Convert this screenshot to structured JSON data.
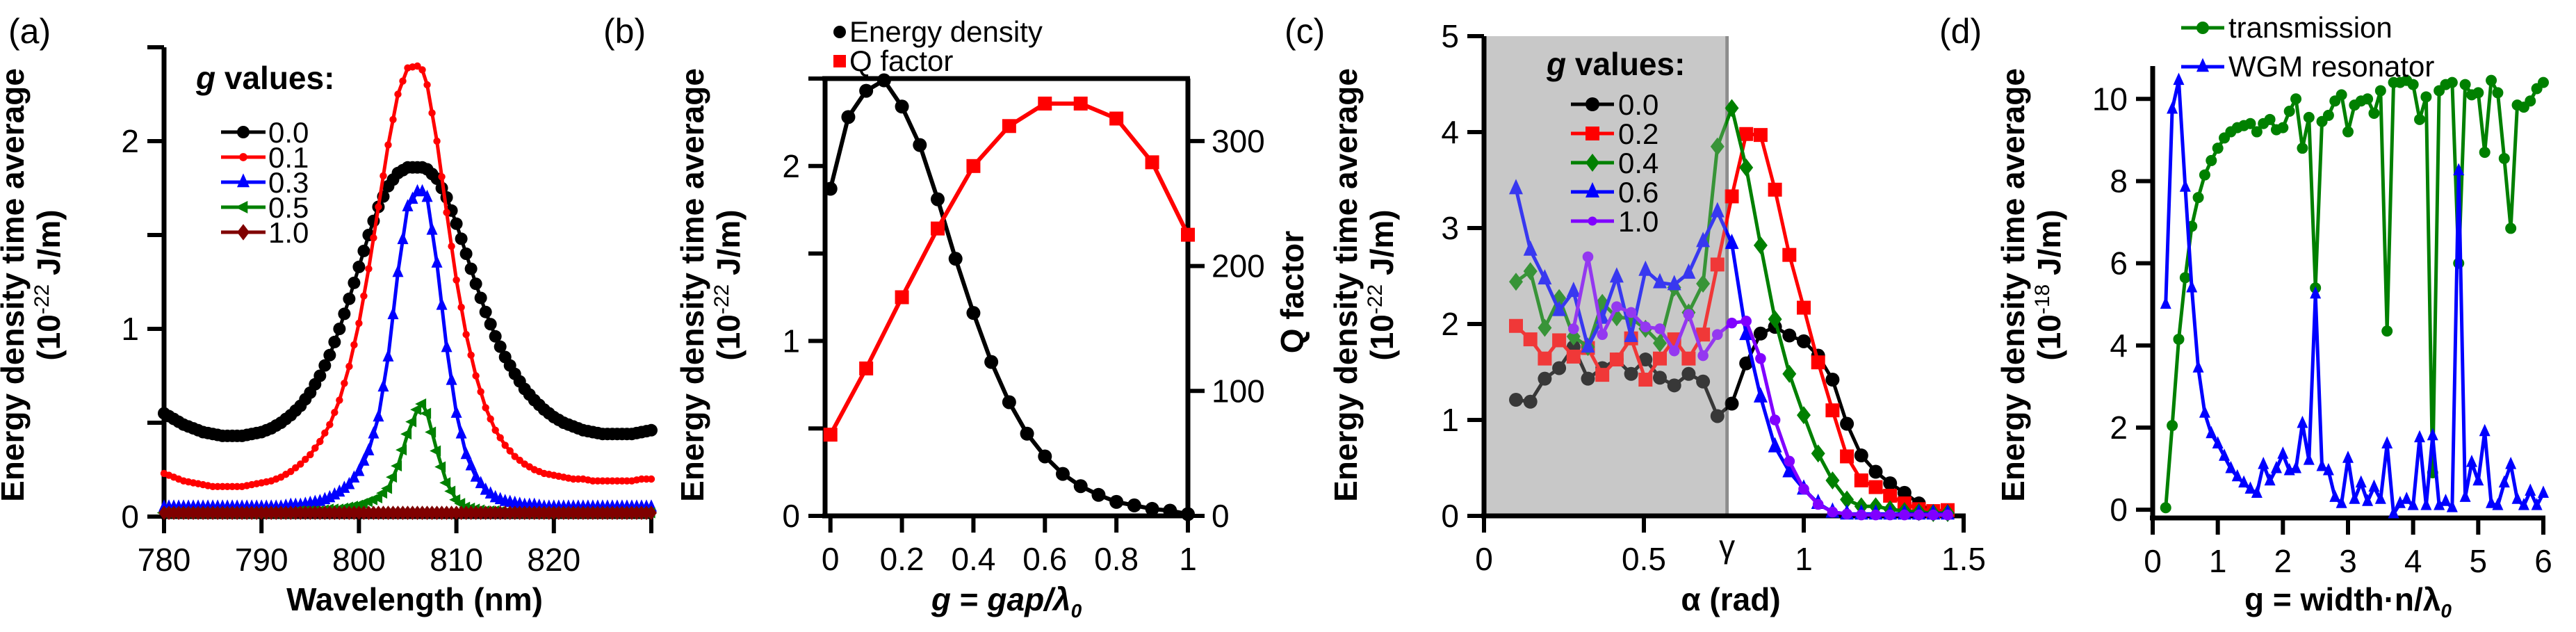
{
  "chart_data": [
    {
      "panel": "(a)",
      "type": "line",
      "title": "",
      "xlabel": "Wavelength (nm)",
      "ylabel": "Energy density time average",
      "ylabel2": "(10^-22 J/m)",
      "ylabel_line1": "Energy density time average",
      "ylabel_line2_prefix": "(10",
      "ylabel_line2_exp": "-22",
      "ylabel_line2_suffix": " J/m)",
      "xlim": [
        780,
        830
      ],
      "ylim": [
        0,
        2.5
      ],
      "xticks": [
        780,
        790,
        800,
        810,
        820,
        830
      ],
      "xtick_labels": [
        "780",
        "790",
        "800",
        "810",
        "820",
        ""
      ],
      "yticks": [
        0,
        0.5,
        1,
        1.5,
        2,
        2.5
      ],
      "ytick_labels": [
        "0",
        "",
        "1",
        "",
        "2",
        ""
      ],
      "legend_title_italic": "g",
      "legend_title": " values:",
      "legend_position": "top-left",
      "x": [
        780,
        781,
        782,
        783,
        784,
        785,
        786,
        787,
        788,
        789,
        790,
        791,
        792,
        793,
        794,
        795,
        796,
        797,
        798,
        799,
        800,
        801,
        802,
        803,
        804,
        805,
        806,
        806.5,
        807,
        808,
        809,
        810,
        811,
        812,
        813,
        814,
        815,
        816,
        817,
        818,
        819,
        820,
        821,
        822,
        823,
        824,
        825,
        826,
        827,
        828,
        829,
        830
      ],
      "series": [
        {
          "name": "0.0",
          "color": "#000000",
          "marker": "circle",
          "values": [
            0.55,
            0.52,
            0.49,
            0.47,
            0.45,
            0.44,
            0.43,
            0.43,
            0.43,
            0.44,
            0.45,
            0.47,
            0.5,
            0.54,
            0.59,
            0.66,
            0.75,
            0.86,
            1.0,
            1.16,
            1.33,
            1.5,
            1.65,
            1.76,
            1.83,
            1.86,
            1.86,
            1.86,
            1.85,
            1.8,
            1.7,
            1.56,
            1.4,
            1.24,
            1.09,
            0.96,
            0.85,
            0.76,
            0.68,
            0.62,
            0.57,
            0.53,
            0.5,
            0.48,
            0.46,
            0.45,
            0.44,
            0.44,
            0.44,
            0.44,
            0.45,
            0.46
          ]
        },
        {
          "name": "0.1",
          "color": "#ff0000",
          "marker": "dot",
          "values": [
            0.23,
            0.21,
            0.19,
            0.18,
            0.17,
            0.16,
            0.16,
            0.16,
            0.16,
            0.17,
            0.18,
            0.19,
            0.21,
            0.24,
            0.28,
            0.33,
            0.4,
            0.49,
            0.62,
            0.8,
            1.03,
            1.32,
            1.65,
            1.98,
            2.25,
            2.39,
            2.4,
            2.38,
            2.3,
            2.0,
            1.62,
            1.26,
            0.97,
            0.75,
            0.58,
            0.46,
            0.38,
            0.32,
            0.28,
            0.25,
            0.23,
            0.22,
            0.21,
            0.2,
            0.2,
            0.19,
            0.19,
            0.19,
            0.19,
            0.19,
            0.2,
            0.2
          ]
        },
        {
          "name": "0.3",
          "color": "#0000ff",
          "marker": "triangle-up",
          "values": [
            0.05,
            0.05,
            0.05,
            0.05,
            0.05,
            0.05,
            0.05,
            0.05,
            0.05,
            0.05,
            0.05,
            0.05,
            0.05,
            0.06,
            0.06,
            0.07,
            0.08,
            0.1,
            0.13,
            0.17,
            0.24,
            0.35,
            0.53,
            0.85,
            1.3,
            1.65,
            1.73,
            1.73,
            1.7,
            1.35,
            0.9,
            0.55,
            0.33,
            0.21,
            0.14,
            0.1,
            0.08,
            0.07,
            0.06,
            0.06,
            0.05,
            0.05,
            0.05,
            0.05,
            0.05,
            0.05,
            0.05,
            0.05,
            0.05,
            0.05,
            0.05,
            0.05
          ]
        },
        {
          "name": "0.5",
          "color": "#008000",
          "marker": "triangle-left",
          "values": [
            0.02,
            0.02,
            0.02,
            0.02,
            0.02,
            0.02,
            0.02,
            0.02,
            0.02,
            0.02,
            0.02,
            0.02,
            0.02,
            0.02,
            0.03,
            0.03,
            0.03,
            0.04,
            0.04,
            0.05,
            0.06,
            0.08,
            0.1,
            0.15,
            0.27,
            0.44,
            0.57,
            0.6,
            0.55,
            0.35,
            0.18,
            0.09,
            0.05,
            0.04,
            0.03,
            0.03,
            0.02,
            0.02,
            0.02,
            0.02,
            0.02,
            0.02,
            0.02,
            0.02,
            0.02,
            0.02,
            0.02,
            0.02,
            0.02,
            0.02,
            0.02,
            0.02
          ]
        },
        {
          "name": "1.0",
          "color": "#800000",
          "marker": "diamond",
          "values": [
            0.02,
            0.02,
            0.02,
            0.02,
            0.02,
            0.02,
            0.02,
            0.02,
            0.02,
            0.02,
            0.02,
            0.02,
            0.02,
            0.02,
            0.02,
            0.02,
            0.02,
            0.02,
            0.02,
            0.02,
            0.02,
            0.02,
            0.02,
            0.02,
            0.02,
            0.02,
            0.02,
            0.02,
            0.02,
            0.02,
            0.02,
            0.02,
            0.02,
            0.02,
            0.02,
            0.02,
            0.02,
            0.02,
            0.02,
            0.02,
            0.02,
            0.02,
            0.02,
            0.02,
            0.02,
            0.02,
            0.02,
            0.02,
            0.02,
            0.02,
            0.02,
            0.02
          ]
        }
      ]
    },
    {
      "panel": "(b)",
      "type": "line",
      "title": "",
      "xlabel_italic": "g",
      "xlabel_rest": " = ",
      "xlabel_italic2": "gap/λ",
      "xlabel_sub": "0",
      "ylabel_line1": "Energy density time average",
      "ylabel_line2_prefix": "(10",
      "ylabel_line2_exp": "-22",
      "ylabel_line2_suffix": " J/m)",
      "ylabel_right": "Q factor",
      "xlim": [
        0,
        1
      ],
      "ylim": [
        0,
        2.5
      ],
      "ylim_right": [
        0,
        350
      ],
      "xticks": [
        0,
        0.2,
        0.4,
        0.6,
        0.8,
        1
      ],
      "xtick_labels": [
        "0",
        "0.2",
        "0.4",
        "0.6",
        "0.8",
        "1"
      ],
      "yticks": [
        0,
        0.5,
        1,
        1.5,
        2,
        2.5
      ],
      "ytick_labels": [
        "0",
        "",
        "1",
        "",
        "2",
        ""
      ],
      "yticks_right": [
        0,
        100,
        200,
        300
      ],
      "ytick_labels_right": [
        "0",
        "100",
        "200",
        "300"
      ],
      "legend_position": "top-left (above axes)",
      "series": [
        {
          "name": "Energy density",
          "axis": "left",
          "color": "#000000",
          "marker": "circle",
          "x": [
            0,
            0.05,
            0.1,
            0.15,
            0.2,
            0.25,
            0.3,
            0.35,
            0.4,
            0.45,
            0.5,
            0.55,
            0.6,
            0.65,
            0.7,
            0.75,
            0.8,
            0.85,
            0.9,
            0.95,
            1.0
          ],
          "values": [
            1.87,
            2.28,
            2.43,
            2.49,
            2.34,
            2.12,
            1.81,
            1.47,
            1.16,
            0.88,
            0.65,
            0.47,
            0.34,
            0.24,
            0.17,
            0.12,
            0.08,
            0.06,
            0.04,
            0.03,
            0.01
          ]
        },
        {
          "name": "Q factor",
          "axis": "right",
          "color": "#ff0000",
          "marker": "square",
          "x": [
            0,
            0.1,
            0.2,
            0.3,
            0.4,
            0.5,
            0.6,
            0.7,
            0.8,
            0.9,
            1.0
          ],
          "values": [
            65,
            118,
            175,
            230,
            280,
            312,
            330,
            330,
            318,
            283,
            225
          ]
        }
      ]
    },
    {
      "panel": "(c)",
      "type": "line",
      "title": "",
      "xlabel": "α (rad)",
      "ylabel_line1": "Energy density time average",
      "ylabel_line2_prefix": "(10",
      "ylabel_line2_exp": "-22",
      "ylabel_line2_suffix": " J/m)",
      "xlim": [
        0,
        1.5
      ],
      "ylim": [
        0,
        5
      ],
      "xticks": [
        0,
        0.5,
        1,
        1.5
      ],
      "xtick_labels": [
        "0",
        "0.5",
        "1",
        "1.5"
      ],
      "yticks": [
        0,
        1,
        2,
        3,
        4,
        5
      ],
      "ytick_labels": [
        "0",
        "1",
        "2",
        "3",
        "4",
        "5"
      ],
      "annotation": {
        "text": "γ",
        "x": 0.76,
        "shaded_region": [
          0,
          0.76
        ],
        "shade_color": "#c8c8c8"
      },
      "legend_title_italic": "g",
      "legend_title": " values:",
      "legend_position": "top (inside shaded area)",
      "x": [
        0.1,
        0.145,
        0.19,
        0.235,
        0.28,
        0.325,
        0.37,
        0.415,
        0.46,
        0.505,
        0.55,
        0.595,
        0.64,
        0.685,
        0.73,
        0.775,
        0.82,
        0.865,
        0.91,
        0.955,
        1.0,
        1.045,
        1.09,
        1.135,
        1.18,
        1.225,
        1.27,
        1.315,
        1.36,
        1.405,
        1.45
      ],
      "series": [
        {
          "name": "0.0",
          "color": "#000000",
          "marker": "circle",
          "values": [
            1.21,
            1.19,
            1.43,
            1.54,
            1.76,
            1.43,
            1.54,
            1.63,
            1.48,
            1.63,
            1.44,
            1.36,
            1.48,
            1.4,
            1.04,
            1.17,
            1.59,
            1.9,
            1.97,
            1.88,
            1.82,
            1.67,
            1.42,
            0.96,
            0.63,
            0.46,
            0.34,
            0.24,
            0.13,
            0.04,
            0.03
          ]
        },
        {
          "name": "0.2",
          "color": "#ff0000",
          "marker": "square",
          "values": [
            1.98,
            1.84,
            1.64,
            1.83,
            1.66,
            1.75,
            1.47,
            1.63,
            1.85,
            1.42,
            1.64,
            1.84,
            1.64,
            1.89,
            2.62,
            3.33,
            3.98,
            3.97,
            3.4,
            2.72,
            2.17,
            1.6,
            1.1,
            0.62,
            0.37,
            0.3,
            0.21,
            0.13,
            0.07,
            0.05,
            0.06
          ]
        },
        {
          "name": "0.4",
          "color": "#008000",
          "marker": "diamond",
          "values": [
            2.44,
            2.55,
            1.96,
            2.27,
            1.87,
            1.76,
            2.22,
            2.07,
            2.06,
            1.95,
            1.8,
            2.38,
            2.12,
            2.42,
            3.85,
            4.25,
            3.63,
            2.82,
            2.05,
            1.48,
            1.05,
            0.65,
            0.37,
            0.17,
            0.1,
            0.1,
            0.07,
            0.05,
            0.04,
            0.03,
            0.03
          ]
        },
        {
          "name": "0.6",
          "color": "#0000ff",
          "marker": "triangle-up",
          "values": [
            3.41,
            2.77,
            2.47,
            2.14,
            2.34,
            1.76,
            2.06,
            2.49,
            1.87,
            2.56,
            2.43,
            2.41,
            2.53,
            2.86,
            3.17,
            2.84,
            1.89,
            1.24,
            0.72,
            0.46,
            0.28,
            0.13,
            0.04,
            0.02,
            0.02,
            0.02,
            0.02,
            0.02,
            0.02,
            0.02,
            0.02
          ]
        },
        {
          "name": "1.0",
          "color": "#8000ff",
          "marker": "dot",
          "values": [
            null,
            null,
            null,
            null,
            1.95,
            2.7,
            1.89,
            2.18,
            2.12,
            1.97,
            1.95,
            1.72,
            2.1,
            1.67,
            1.89,
            2.01,
            2.03,
            1.64,
            1.0,
            0.57,
            0.28,
            0.12,
            0.04,
            0.02,
            0.01,
            0.01,
            0.01,
            0.01,
            0.01,
            0.01,
            0.01
          ]
        }
      ]
    },
    {
      "panel": "(d)",
      "type": "line",
      "title": "",
      "xlabel": "g = width·n/λ",
      "xlabel_sub": "0",
      "ylabel_line1": "Energy density time average",
      "ylabel_line2_prefix": "(10",
      "ylabel_line2_exp": "-18",
      "ylabel_line2_suffix": " J/m)",
      "xlim": [
        0,
        6
      ],
      "ylim": [
        -0.2,
        10.8
      ],
      "xticks": [
        0,
        1,
        2,
        3,
        4,
        5,
        6
      ],
      "xtick_labels": [
        "0",
        "1",
        "2",
        "3",
        "4",
        "5",
        "6"
      ],
      "yticks": [
        0,
        2,
        4,
        6,
        8,
        10
      ],
      "ytick_labels": [
        "0",
        "2",
        "4",
        "6",
        "8",
        "10"
      ],
      "legend_position": "top (above axes)",
      "x": [
        0.2,
        0.3,
        0.4,
        0.5,
        0.6,
        0.7,
        0.8,
        0.9,
        1.0,
        1.1,
        1.2,
        1.3,
        1.4,
        1.5,
        1.6,
        1.7,
        1.8,
        1.9,
        2.0,
        2.1,
        2.2,
        2.3,
        2.4,
        2.5,
        2.6,
        2.7,
        2.8,
        2.9,
        3.0,
        3.1,
        3.2,
        3.3,
        3.4,
        3.5,
        3.6,
        3.7,
        3.8,
        3.9,
        4.0,
        4.1,
        4.2,
        4.3,
        4.4,
        4.5,
        4.6,
        4.7,
        4.8,
        4.9,
        5.0,
        5.1,
        5.2,
        5.3,
        5.4,
        5.5,
        5.6,
        5.7,
        5.8,
        5.9,
        6.0
      ],
      "series": [
        {
          "name": "transmission",
          "color": "#008000",
          "marker": "circle",
          "values": [
            0.05,
            2.05,
            4.15,
            5.65,
            6.9,
            7.6,
            8.15,
            8.5,
            8.8,
            9.05,
            9.2,
            9.3,
            9.35,
            9.4,
            9.2,
            9.4,
            9.5,
            9.25,
            9.3,
            9.7,
            10.0,
            8.8,
            9.55,
            5.4,
            9.45,
            9.6,
            9.95,
            10.1,
            9.2,
            9.85,
            9.95,
            10.0,
            9.65,
            10.2,
            4.35,
            10.4,
            10.4,
            10.45,
            10.35,
            9.5,
            10.05,
            0.9,
            10.2,
            10.35,
            10.4,
            6.0,
            10.35,
            10.1,
            10.15,
            8.7,
            10.45,
            10.15,
            8.55,
            6.85,
            9.85,
            9.8,
            9.95,
            10.25,
            10.4
          ]
        },
        {
          "name": "WGM resonator",
          "color": "#0000ff",
          "marker": "triangle-up",
          "values": [
            5.0,
            9.75,
            10.45,
            7.85,
            5.4,
            3.45,
            2.35,
            1.85,
            1.6,
            1.3,
            1.0,
            0.8,
            0.65,
            0.5,
            0.4,
            1.1,
            0.7,
            1.0,
            1.35,
            0.95,
            1.0,
            2.1,
            1.2,
            5.25,
            1.05,
            0.95,
            0.3,
            0.15,
            1.25,
            0.25,
            0.65,
            0.2,
            0.55,
            0.25,
            1.6,
            -0.1,
            0.15,
            0.25,
            0.1,
            1.75,
            0.1,
            1.8,
            0.1,
            0.2,
            0.05,
            8.25,
            0.3,
            1.15,
            0.7,
            1.9,
            0.15,
            0.1,
            0.65,
            1.1,
            0.25,
            0.1,
            0.45,
            0.1,
            0.4
          ]
        }
      ]
    }
  ]
}
